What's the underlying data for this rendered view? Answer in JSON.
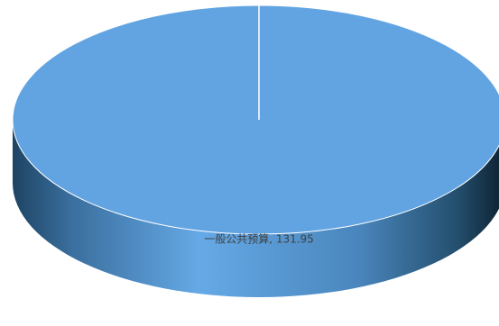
{
  "chart_data": {
    "type": "pie",
    "values": [
      131.95
    ],
    "value_labels": [
      "一般公共预算, 131.95"
    ],
    "color": "#62a4e2",
    "three_d": true
  }
}
